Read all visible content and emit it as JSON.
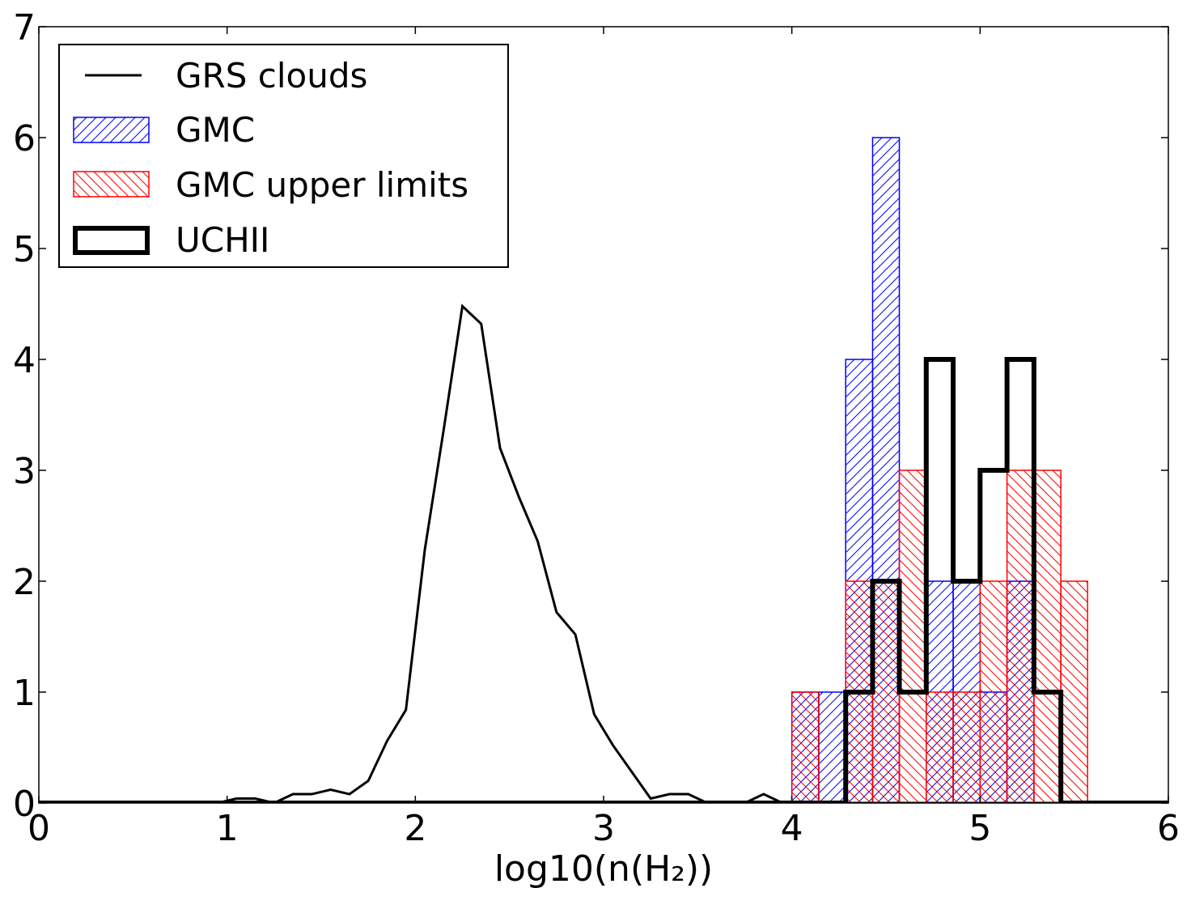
{
  "chart_data": {
    "type": "histogram",
    "xlabel": "log10(n(H₂))",
    "xlim": [
      0,
      6
    ],
    "ylim": [
      0,
      7
    ],
    "xticks": [
      "0",
      "1",
      "2",
      "3",
      "4",
      "5",
      "6"
    ],
    "yticks": [
      "0",
      "1",
      "2",
      "3",
      "4",
      "5",
      "6",
      "7"
    ],
    "legend_position": "top-left",
    "series": [
      {
        "name": "GRS clouds",
        "style": "line",
        "color": "#000000",
        "x": [
          0.05,
          0.15,
          0.25,
          0.35,
          0.45,
          0.55,
          0.65,
          0.75,
          0.85,
          0.95,
          1.05,
          1.15,
          1.25,
          1.35,
          1.45,
          1.55,
          1.65,
          1.75,
          1.85,
          1.95,
          2.05,
          2.15,
          2.25,
          2.35,
          2.45,
          2.55,
          2.65,
          2.75,
          2.85,
          2.95,
          3.05,
          3.15,
          3.25,
          3.35,
          3.45,
          3.55,
          3.65,
          3.75,
          3.85,
          3.95,
          4.05,
          4.15,
          4.25,
          4.35,
          4.45,
          4.55,
          4.65,
          4.75,
          4.85,
          4.95,
          5.05,
          5.15,
          5.25,
          5.35,
          5.45,
          5.55,
          5.65,
          5.75,
          5.85,
          5.95
        ],
        "y": [
          0,
          0,
          0,
          0,
          0,
          0,
          0,
          0,
          0,
          0,
          0.04,
          0.04,
          0.0,
          0.08,
          0.08,
          0.12,
          0.08,
          0.2,
          0.56,
          0.84,
          2.28,
          3.36,
          4.48,
          4.32,
          3.2,
          2.76,
          2.36,
          1.72,
          1.52,
          0.8,
          0.52,
          0.28,
          0.04,
          0.08,
          0.08,
          0,
          0,
          0,
          0.08,
          0,
          0,
          0,
          0,
          0,
          0,
          0,
          0,
          0,
          0,
          0,
          0,
          0,
          0,
          0,
          0,
          0,
          0,
          0,
          0,
          0
        ]
      },
      {
        "name": "GMC",
        "style": "hatched-step",
        "color": "#0000ff",
        "bin_edges": [
          4.0,
          4.143,
          4.286,
          4.429,
          4.571,
          4.714,
          4.857,
          5.0,
          5.143,
          5.286
        ],
        "values": [
          1,
          1,
          4,
          6,
          0,
          2,
          2,
          1,
          2
        ]
      },
      {
        "name": "GMC upper limits",
        "style": "hatched-step",
        "color": "#ff0000",
        "bin_edges": [
          4.0,
          4.143,
          4.286,
          4.429,
          4.571,
          4.714,
          4.857,
          5.0,
          5.143,
          5.286,
          5.429,
          5.571
        ],
        "values": [
          1,
          0,
          2,
          2,
          3,
          1,
          1,
          2,
          3,
          3,
          2
        ]
      },
      {
        "name": "UCHII",
        "style": "thick-step",
        "color": "#000000",
        "bin_edges": [
          4.286,
          4.429,
          4.571,
          4.714,
          4.857,
          5.0,
          5.143,
          5.286,
          5.429
        ],
        "values": [
          1,
          2,
          1,
          4,
          2,
          3,
          4,
          1
        ]
      }
    ]
  }
}
